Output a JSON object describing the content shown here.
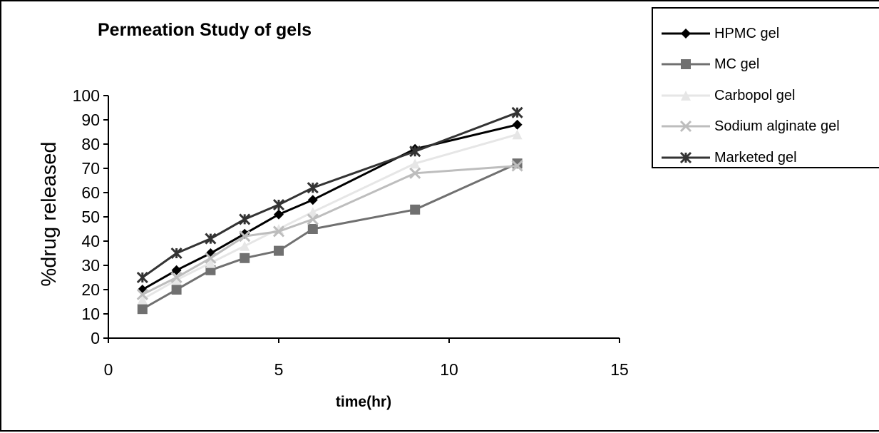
{
  "chart_data": {
    "type": "line",
    "title": "Permeation Study of gels",
    "xlabel": "time(hr)",
    "ylabel": "%drug released",
    "xlim": [
      0,
      15
    ],
    "ylim": [
      0,
      100
    ],
    "x_ticks": [
      "0",
      "5",
      "10",
      "15"
    ],
    "y_ticks": [
      "0",
      "10",
      "20",
      "30",
      "40",
      "50",
      "60",
      "70",
      "80",
      "90",
      "100"
    ],
    "grid": false,
    "legend_position": "top-right",
    "x": [
      1,
      2,
      3,
      4,
      5,
      6,
      9,
      12
    ],
    "series": [
      {
        "name": "HPMC gel",
        "color": "#000000",
        "marker": "diamond",
        "values": [
          20,
          28,
          35,
          43,
          51,
          57,
          78,
          88
        ]
      },
      {
        "name": "MC gel",
        "color": "#707070",
        "marker": "square",
        "values": [
          12,
          20,
          28,
          33,
          36,
          45,
          53,
          72
        ]
      },
      {
        "name": "Carbopol gel",
        "color": "#e6e6e6",
        "marker": "triangle",
        "values": [
          16,
          24,
          31,
          38,
          45,
          52,
          72,
          84
        ]
      },
      {
        "name": "Sodium alginate gel",
        "color": "#bdbdbd",
        "marker": "x",
        "values": [
          18,
          25,
          33,
          42,
          44,
          49,
          68,
          71
        ]
      },
      {
        "name": "Marketed gel",
        "color": "#333333",
        "marker": "star",
        "values": [
          25,
          35,
          41,
          49,
          55,
          62,
          77,
          93
        ]
      }
    ]
  }
}
